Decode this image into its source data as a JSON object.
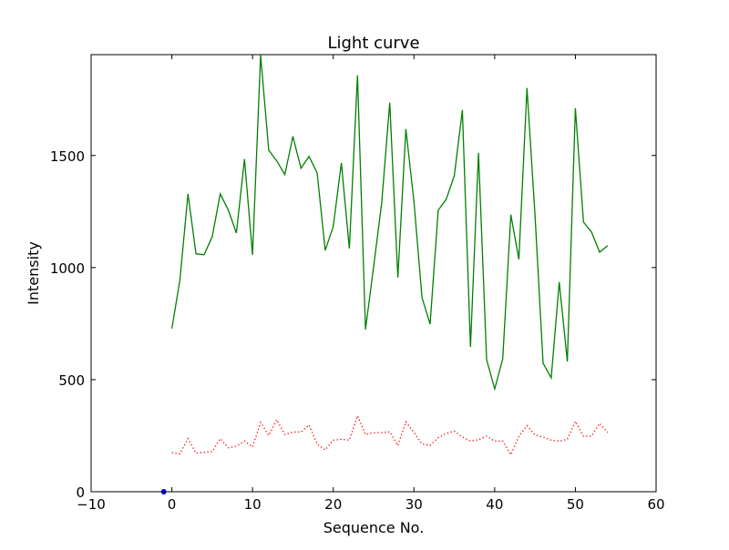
{
  "chart_data": {
    "type": "line",
    "title": "Light curve",
    "xlabel": "Sequence No.",
    "ylabel": "Intensity",
    "xlim": [
      -10,
      60
    ],
    "ylim": [
      0,
      1950
    ],
    "xticks": [
      -10,
      0,
      10,
      20,
      30,
      40,
      50,
      60
    ],
    "yticks": [
      0,
      500,
      1000,
      1500
    ],
    "xtick_labels": [
      "−10",
      "0",
      "10",
      "20",
      "30",
      "40",
      "50",
      "60"
    ],
    "ytick_labels": [
      "0",
      "500",
      "1000",
      "1500"
    ],
    "grid": false,
    "series": [
      {
        "name": "green",
        "color": "#008000",
        "style": "solid",
        "x_start": 0,
        "values": [
          728,
          943,
          1329,
          1061,
          1057,
          1138,
          1329,
          1256,
          1154,
          1484,
          1057,
          1947,
          1524,
          1476,
          1415,
          1585,
          1443,
          1496,
          1423,
          1077,
          1183,
          1467,
          1085,
          1858,
          724,
          1004,
          1289,
          1736,
          955,
          1618,
          1293,
          866,
          748,
          1256,
          1305,
          1411,
          1703,
          646,
          1512,
          589,
          459,
          593,
          1236,
          1037,
          1801,
          1236,
          573,
          508,
          935,
          581,
          1711,
          1203,
          1159,
          1069,
          1098
        ]
      },
      {
        "name": "red",
        "color": "#ff0000",
        "style": "dotted",
        "x_start": 0,
        "values": [
          174,
          169,
          237,
          172,
          176,
          179,
          237,
          196,
          203,
          226,
          200,
          309,
          251,
          321,
          255,
          266,
          267,
          298,
          213,
          187,
          230,
          234,
          230,
          339,
          255,
          263,
          264,
          267,
          206,
          312,
          264,
          213,
          207,
          241,
          260,
          270,
          244,
          226,
          232,
          248,
          226,
          226,
          165,
          247,
          295,
          253,
          244,
          230,
          225,
          234,
          314,
          248,
          248,
          305,
          264
        ]
      },
      {
        "name": "blue",
        "color": "#0000ff",
        "style": "marker",
        "x": [
          -1
        ],
        "values": [
          0
        ]
      }
    ]
  }
}
